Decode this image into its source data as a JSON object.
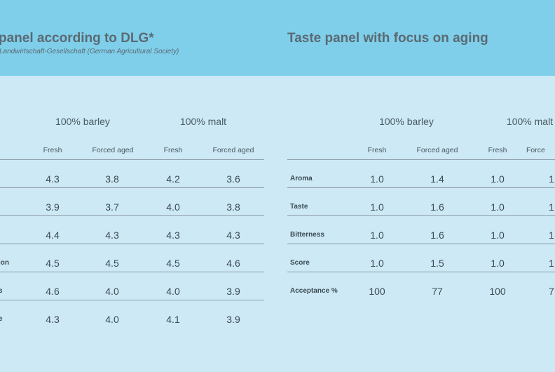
{
  "left_panel": {
    "title": "panel according to DLG*",
    "subtitle": "Landwirtschaft-Gesellschaft (German Agricultural Society)",
    "groups": [
      "100% barley",
      "100% malt"
    ],
    "subheaders": [
      "Fresh",
      "Forced aged",
      "Fresh",
      "Forced aged"
    ],
    "rows": [
      {
        "label": "",
        "values": [
          "4.3",
          "3.8",
          "4.2",
          "3.6"
        ]
      },
      {
        "label": "",
        "values": [
          "3.9",
          "3.7",
          "4.0",
          "3.8"
        ]
      },
      {
        "label": "",
        "values": [
          "4.4",
          "4.3",
          "4.3",
          "4.3"
        ]
      },
      {
        "label": "ion",
        "values": [
          "4.5",
          "4.5",
          "4.5",
          "4.6"
        ]
      },
      {
        "label": "s",
        "values": [
          "4.6",
          "4.0",
          "4.0",
          "3.9"
        ]
      },
      {
        "label": "e",
        "values": [
          "4.3",
          "4.0",
          "4.1",
          "3.9"
        ]
      }
    ]
  },
  "right_panel": {
    "title": "Taste panel with focus on aging",
    "groups": [
      "100% barley",
      "100% malt"
    ],
    "subheaders": [
      "Fresh",
      "Forced aged",
      "Fresh",
      "Force"
    ],
    "rows": [
      {
        "label": "Aroma",
        "values": [
          "1.0",
          "1.4",
          "1.0",
          "1"
        ]
      },
      {
        "label": "Taste",
        "values": [
          "1.0",
          "1.6",
          "1.0",
          "1"
        ]
      },
      {
        "label": "Bitterness",
        "values": [
          "1.0",
          "1.6",
          "1.0",
          "1"
        ]
      },
      {
        "label": "Score",
        "values": [
          "1.0",
          "1.5",
          "1.0",
          "1"
        ]
      },
      {
        "label": "Acceptance %",
        "values": [
          "100",
          "77",
          "100",
          "7"
        ]
      }
    ]
  }
}
